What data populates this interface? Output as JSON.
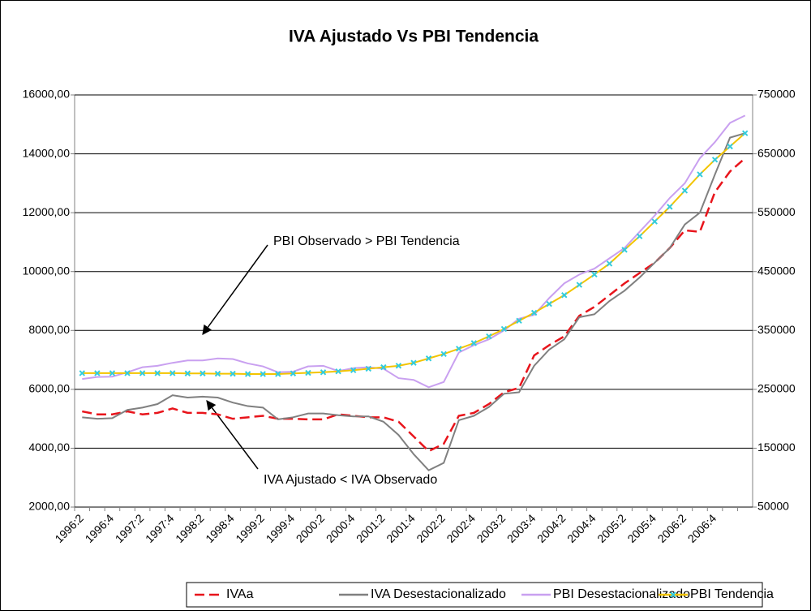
{
  "chart_data": {
    "type": "line",
    "title": "IVA Ajustado Vs PBI Tendencia",
    "categories": [
      "1996:2",
      null,
      "1996:4",
      null,
      "1997:2",
      null,
      "1997:4",
      null,
      "1998:2",
      null,
      "1998:4",
      null,
      "1999:2",
      null,
      "1999:4",
      null,
      "2000:2",
      null,
      "2000:4",
      null,
      "2001:2",
      null,
      "2001:4",
      null,
      "2002:2",
      null,
      "2002:4",
      null,
      "2003:2",
      null,
      "2003:4",
      null,
      "2004:2",
      null,
      "2004:4",
      null,
      "2005:2",
      null,
      "2005:4",
      null,
      "2006:2",
      null,
      "2006:4",
      null,
      null
    ],
    "series": [
      {
        "name": "IVAa",
        "color": "#e8141b",
        "dash": true,
        "values": [
          5250,
          5150,
          5150,
          5250,
          5150,
          5200,
          5350,
          5200,
          5200,
          5150,
          5000,
          5050,
          5100,
          5000,
          5000,
          4980,
          4980,
          5150,
          5100,
          5050,
          5050,
          4900,
          4400,
          3900,
          4150,
          5100,
          5200,
          5500,
          5900,
          6050,
          7150,
          7500,
          7800,
          8500,
          8800,
          9200,
          9600,
          9950,
          10300,
          10800,
          11400,
          11350,
          12700,
          13400,
          13850
        ]
      },
      {
        "name": "IVA Desestacionalizado",
        "color": "#808080",
        "values": [
          5050,
          5000,
          5020,
          5300,
          5380,
          5500,
          5800,
          5720,
          5750,
          5720,
          5550,
          5430,
          5380,
          4980,
          5050,
          5180,
          5180,
          5120,
          5080,
          5080,
          4900,
          4450,
          3800,
          3250,
          3500,
          4950,
          5100,
          5400,
          5850,
          5900,
          6800,
          7350,
          7700,
          8450,
          8550,
          9000,
          9350,
          9800,
          10300,
          10800,
          11600,
          12000,
          13300,
          14550,
          14700
        ]
      },
      {
        "name": "PBI Desestacionalizado",
        "color": "#c9a0f0",
        "axis": "y2",
        "values": [
          267500,
          271000,
          271500,
          279000,
          287500,
          290000,
          295000,
          299000,
          299000,
          302500,
          301500,
          294000,
          289000,
          279000,
          280000,
          289000,
          290000,
          281000,
          286000,
          287500,
          285000,
          269000,
          266000,
          253500,
          262500,
          312500,
          325000,
          335000,
          350000,
          370000,
          376500,
          405000,
          430000,
          445000,
          455000,
          472500,
          490000,
          517500,
          545000,
          575000,
          600000,
          642500,
          670000,
          702500,
          715000
        ]
      },
      {
        "name": "PBI Tendencia",
        "color": "#f2c400",
        "marker_color": "#33ccdd",
        "axis": "y2",
        "values": [
          277500,
          277500,
          277500,
          277500,
          277500,
          277500,
          277500,
          277000,
          277000,
          276500,
          276500,
          276000,
          276000,
          276000,
          277000,
          278000,
          279000,
          280500,
          282500,
          285000,
          287500,
          290000,
          295000,
          302500,
          310000,
          319000,
          328500,
          340000,
          352500,
          366500,
          380000,
          395000,
          410000,
          427500,
          445000,
          463500,
          487000,
          510000,
          535000,
          560000,
          587500,
          615000,
          640000,
          662500,
          685000
        ]
      }
    ],
    "ylim": [
      2000,
      16000
    ],
    "yticks": [
      {
        "value": 2000,
        "label": "2000,00"
      },
      {
        "value": 4000,
        "label": "4000,00"
      },
      {
        "value": 6000,
        "label": "6000,00"
      },
      {
        "value": 8000,
        "label": "8000,00"
      },
      {
        "value": 10000,
        "label": "10000,00"
      },
      {
        "value": 12000,
        "label": "12000,00"
      },
      {
        "value": 14000,
        "label": "14000,00"
      },
      {
        "value": 16000,
        "label": "16000,00"
      }
    ],
    "y2lim": [
      50000,
      750000
    ],
    "y2ticks": [
      50000,
      150000,
      250000,
      350000,
      450000,
      550000,
      650000,
      750000
    ],
    "grid": true,
    "legend": "bottom",
    "annotations": [
      "PBI Observado > PBI Tendencia",
      "IVA Ajustado < IVA Observado"
    ]
  }
}
